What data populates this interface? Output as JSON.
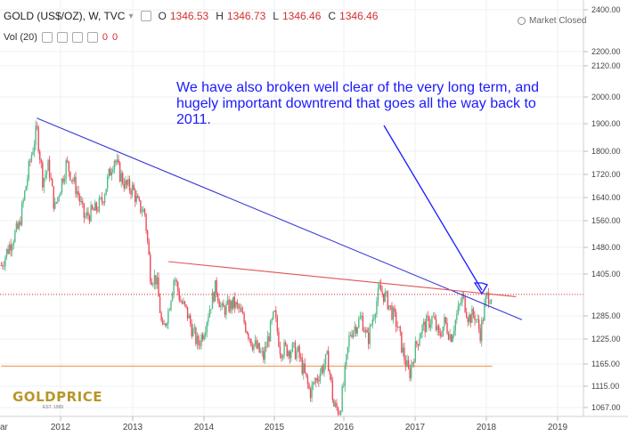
{
  "header": {
    "symbol": "GOLD (US$/OZ), W, TVC",
    "open_label": "O",
    "open": "1346.53",
    "high_label": "H",
    "high": "1346.73",
    "low_label": "L",
    "low": "1346.46",
    "close_label": "C",
    "close": "1346.46",
    "market_status": "Market Closed"
  },
  "volume": {
    "label": "Vol (20)",
    "value1": "0",
    "value2": "0"
  },
  "annotation": "We have also broken well clear of the very long term, and hugely important downtrend that goes all the way back to 2011.",
  "logo": {
    "text": "GOLDPRICE",
    "sub": "EST. 1999"
  },
  "colors": {
    "up": "#53b987",
    "down": "#eb4d5c",
    "downtrend": "#3a3ad6",
    "resistance": "#e05555",
    "support": "#f0a060",
    "price_line": "#d32f2f",
    "price_badge": "#ef5350",
    "annotation": "#1a1aff"
  },
  "chart_data": {
    "type": "candlestick",
    "x_axis": {
      "range": [
        "2011-03",
        "2019-02"
      ],
      "tick_labels": [
        "ar",
        "2012",
        "2013",
        "2014",
        "2015",
        "2016",
        "2017",
        "2018",
        "2019"
      ]
    },
    "y_axis": {
      "range": [
        1030,
        2410
      ],
      "tick_labels": [
        "2400.00",
        "2200.00",
        "2120.00",
        "2000.00",
        "1900.00",
        "1800.00",
        "1720.00",
        "1640.00",
        "1560.00",
        "1480.00",
        "1405.00",
        "1285.00",
        "1225.00",
        "1165.00",
        "1115.00",
        "1067.00"
      ]
    },
    "last_price": "1346.46",
    "price_path": [
      [
        "2011-03",
        1430
      ],
      [
        "2011-05",
        1510
      ],
      [
        "2011-06",
        1540
      ],
      [
        "2011-08",
        1780
      ],
      [
        "2011-09",
        1880
      ],
      [
        "2011-10",
        1700
      ],
      [
        "2011-11",
        1750
      ],
      [
        "2011-12",
        1600
      ],
      [
        "2012-01",
        1680
      ],
      [
        "2012-02",
        1760
      ],
      [
        "2012-04",
        1650
      ],
      [
        "2012-05",
        1570
      ],
      [
        "2012-07",
        1600
      ],
      [
        "2012-08",
        1630
      ],
      [
        "2012-10",
        1780
      ],
      [
        "2012-11",
        1720
      ],
      [
        "2012-12",
        1680
      ],
      [
        "2013-01",
        1670
      ],
      [
        "2013-02",
        1610
      ],
      [
        "2013-03",
        1590
      ],
      [
        "2013-04",
        1400
      ],
      [
        "2013-05",
        1390
      ],
      [
        "2013-06",
        1240
      ],
      [
        "2013-07",
        1300
      ],
      [
        "2013-08",
        1400
      ],
      [
        "2013-09",
        1330
      ],
      [
        "2013-10",
        1300
      ],
      [
        "2013-11",
        1250
      ],
      [
        "2013-12",
        1210
      ],
      [
        "2014-01",
        1250
      ],
      [
        "2014-03",
        1370
      ],
      [
        "2014-04",
        1300
      ],
      [
        "2014-06",
        1320
      ],
      [
        "2014-07",
        1300
      ],
      [
        "2014-09",
        1220
      ],
      [
        "2014-10",
        1200
      ],
      [
        "2014-11",
        1180
      ],
      [
        "2015-01",
        1290
      ],
      [
        "2015-02",
        1200
      ],
      [
        "2015-04",
        1200
      ],
      [
        "2015-05",
        1190
      ],
      [
        "2015-07",
        1100
      ],
      [
        "2015-08",
        1130
      ],
      [
        "2015-10",
        1180
      ],
      [
        "2015-11",
        1070
      ],
      [
        "2015-12",
        1060
      ],
      [
        "2016-01",
        1120
      ],
      [
        "2016-02",
        1240
      ],
      [
        "2016-04",
        1280
      ],
      [
        "2016-05",
        1220
      ],
      [
        "2016-07",
        1360
      ],
      [
        "2016-08",
        1340
      ],
      [
        "2016-10",
        1260
      ],
      [
        "2016-11",
        1190
      ],
      [
        "2016-12",
        1140
      ],
      [
        "2017-01",
        1200
      ],
      [
        "2017-02",
        1250
      ],
      [
        "2017-04",
        1280
      ],
      [
        "2017-05",
        1230
      ],
      [
        "2017-06",
        1270
      ],
      [
        "2017-07",
        1230
      ],
      [
        "2017-09",
        1340
      ],
      [
        "2017-10",
        1280
      ],
      [
        "2017-11",
        1290
      ],
      [
        "2017-12",
        1240
      ],
      [
        "2018-01",
        1340
      ],
      [
        "2018-02",
        1346
      ]
    ],
    "trendlines": [
      {
        "name": "downtrend",
        "points": [
          [
            "2011-09",
            1921
          ],
          [
            "2018-07",
            1275
          ]
        ]
      },
      {
        "name": "resistance",
        "points": [
          [
            "2013-07",
            1440
          ],
          [
            "2018-06",
            1340
          ]
        ]
      },
      {
        "name": "support",
        "points": [
          [
            "2011-03",
            1160
          ],
          [
            "2018-02",
            1160
          ]
        ]
      }
    ]
  }
}
